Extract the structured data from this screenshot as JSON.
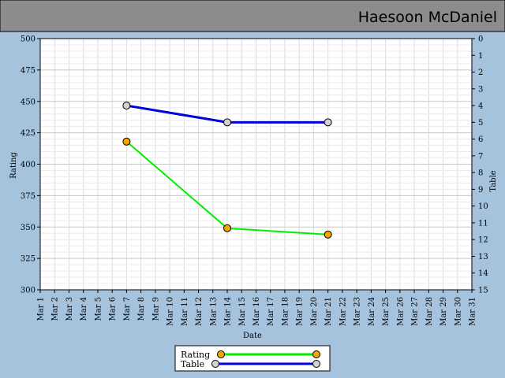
{
  "header": {
    "title": "Haesoon McDaniel"
  },
  "colors": {
    "background": "#a6c3dd",
    "header": "#8c8c8c",
    "rating_line": "#00ee00",
    "rating_marker": "#f5a500",
    "table_line": "#0000dd",
    "table_marker": "#d2d2d2"
  },
  "chart_data": {
    "type": "line",
    "xlabel": "Date",
    "ylabel": "Rating",
    "y2label": "Table",
    "x_categories": [
      "Mar 1",
      "Mar 2",
      "Mar 3",
      "Mar 4",
      "Mar 5",
      "Mar 6",
      "Mar 7",
      "Mar 8",
      "Mar 9",
      "Mar 10",
      "Mar 11",
      "Mar 12",
      "Mar 13",
      "Mar 14",
      "Mar 15",
      "Mar 16",
      "Mar 17",
      "Mar 18",
      "Mar 19",
      "Mar 20",
      "Mar 21",
      "Mar 22",
      "Mar 23",
      "Mar 24",
      "Mar 25",
      "Mar 26",
      "Mar 27",
      "Mar 28",
      "Mar 29",
      "Mar 30",
      "Mar 31"
    ],
    "ylim": [
      300,
      500
    ],
    "yticks": [
      300,
      325,
      350,
      375,
      400,
      425,
      450,
      475,
      500
    ],
    "y2lim": [
      0,
      15
    ],
    "y2_reversed": true,
    "y2ticks": [
      0,
      1,
      2,
      3,
      4,
      5,
      6,
      7,
      8,
      9,
      10,
      11,
      12,
      13,
      14,
      15
    ],
    "grid": true,
    "legend_position": "bottom-center",
    "series": [
      {
        "name": "Rating",
        "axis": "left",
        "x": [
          "Mar 7",
          "Mar 14",
          "Mar 21"
        ],
        "values": [
          418,
          349,
          344
        ]
      },
      {
        "name": "Table",
        "axis": "right",
        "x": [
          "Mar 7",
          "Mar 14",
          "Mar 21"
        ],
        "values": [
          4,
          5,
          5
        ]
      }
    ]
  }
}
